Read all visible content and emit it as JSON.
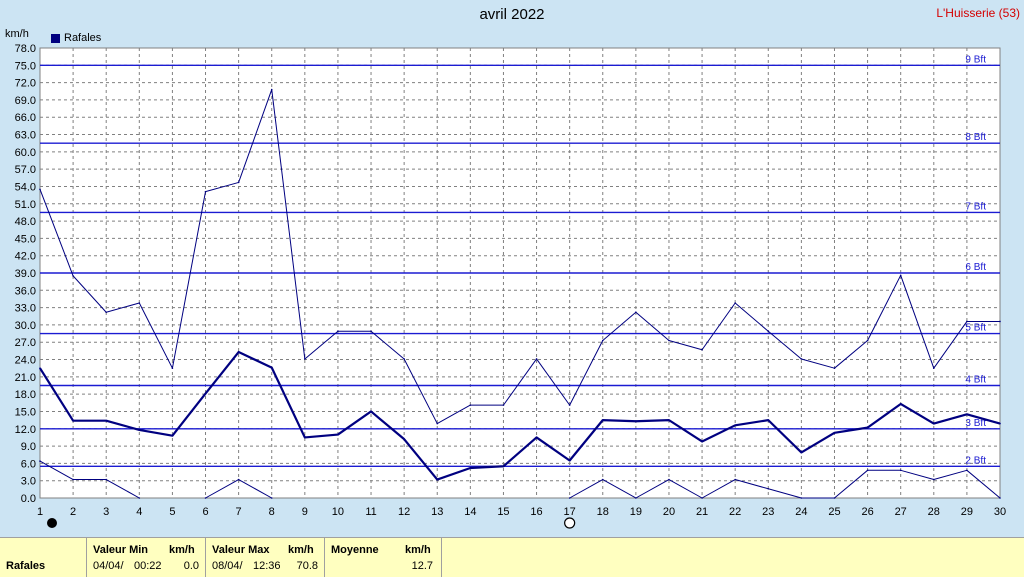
{
  "header": {
    "title": "avril 2022",
    "station": "L'Huisserie (53)",
    "unit": "km/h",
    "legend_label": "Rafales"
  },
  "chart_data": {
    "type": "line",
    "title": "avril 2022",
    "ylabel": "km/h",
    "xlabel": "",
    "x": [
      1,
      2,
      3,
      4,
      5,
      6,
      7,
      8,
      9,
      10,
      11,
      12,
      13,
      14,
      15,
      16,
      17,
      18,
      19,
      20,
      21,
      22,
      23,
      24,
      25,
      26,
      27,
      28,
      29,
      30
    ],
    "xlim": [
      1,
      30
    ],
    "ylim": [
      0,
      78
    ],
    "y_ticks": [
      "0.0",
      "3.0",
      "6.0",
      "9.0",
      "12.0",
      "15.0",
      "18.0",
      "21.0",
      "24.0",
      "27.0",
      "30.0",
      "33.0",
      "36.0",
      "39.0",
      "42.0",
      "45.0",
      "48.0",
      "51.0",
      "54.0",
      "57.0",
      "60.0",
      "63.0",
      "66.0",
      "69.0",
      "72.0",
      "75.0",
      "78.0"
    ],
    "grid": true,
    "legend_position": "top-left",
    "series": [
      {
        "name": "Rafales",
        "role": "max",
        "color": "#000080",
        "values": [
          53.5,
          38.5,
          32.2,
          33.8,
          22.5,
          53.1,
          54.7,
          70.8,
          24.1,
          28.9,
          28.9,
          24.1,
          12.9,
          16.1,
          16.1,
          24.1,
          16.1,
          27.3,
          32.2,
          27.3,
          25.7,
          33.8,
          28.9,
          24.1,
          22.5,
          27.3,
          38.6,
          22.5,
          30.6,
          30.6
        ]
      },
      {
        "name": "Rafales",
        "role": "mean",
        "color": "#000080",
        "values": [
          22.5,
          13.4,
          13.4,
          11.8,
          10.8,
          18.1,
          25.3,
          22.6,
          10.5,
          11.0,
          15.0,
          10.2,
          3.2,
          5.2,
          5.5,
          10.5,
          6.5,
          13.5,
          13.3,
          13.5,
          9.8,
          12.6,
          13.5,
          7.9,
          11.3,
          12.2,
          16.3,
          12.9,
          14.5,
          12.9
        ]
      },
      {
        "name": "Rafales",
        "role": "min",
        "color": "#000080",
        "values": [
          6.4,
          3.2,
          3.2,
          0.0,
          null,
          0.0,
          3.2,
          0.0,
          null,
          null,
          null,
          null,
          null,
          null,
          null,
          null,
          0.0,
          3.2,
          0.0,
          3.2,
          0.0,
          3.2,
          1.6,
          0.0,
          0.0,
          4.8,
          4.8,
          3.2,
          4.8,
          0.0
        ]
      }
    ],
    "reference_lines": [
      {
        "label": "2 Bft",
        "value": 5.5
      },
      {
        "label": "3 Bft",
        "value": 12.0
      },
      {
        "label": "4 Bft",
        "value": 19.5
      },
      {
        "label": "5 Bft",
        "value": 28.5
      },
      {
        "label": "6 Bft",
        "value": 39.0
      },
      {
        "label": "7 Bft",
        "value": 49.5
      },
      {
        "label": "8 Bft",
        "value": 61.5
      },
      {
        "label": "9 Bft",
        "value": 75.0
      }
    ],
    "reference_color": "#1b1bd2",
    "moon_phases": [
      {
        "day": 1,
        "phase": "new"
      },
      {
        "day": 17,
        "phase": "full"
      }
    ]
  },
  "summary": {
    "row_label": "Rafales",
    "min_header": "Valeur Min",
    "min_unit": "km/h",
    "min_date": "04/04/",
    "min_time": "00:22",
    "min_value": "0.0",
    "max_header": "Valeur Max",
    "max_unit": "km/h",
    "max_date": "08/04/",
    "max_time": "12:36",
    "max_value": "70.8",
    "mean_header": "Moyenne",
    "mean_unit": "km/h",
    "mean_value": "12.7"
  }
}
